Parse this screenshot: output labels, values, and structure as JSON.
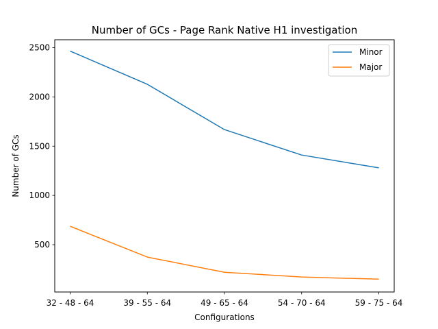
{
  "chart_data": {
    "type": "line",
    "title": "Number of GCs - Page Rank Native H1 investigation",
    "xlabel": "Configurations",
    "ylabel": "Number of GCs",
    "categories": [
      "32 - 48 - 64",
      "39 - 55 - 64",
      "49 - 65 - 64",
      "54 - 70 - 64",
      "59 - 75 - 64"
    ],
    "series": [
      {
        "name": "Minor",
        "color": "#1f77b4",
        "values": [
          2465,
          2128,
          1668,
          1410,
          1280
        ]
      },
      {
        "name": "Major",
        "color": "#ff7f0e",
        "values": [
          687,
          374,
          220,
          172,
          150
        ]
      }
    ],
    "ylim": [
      20,
      2580
    ],
    "yticks": [
      500,
      1000,
      1500,
      2000,
      2500
    ],
    "grid": false,
    "legend_position": "top-right"
  }
}
